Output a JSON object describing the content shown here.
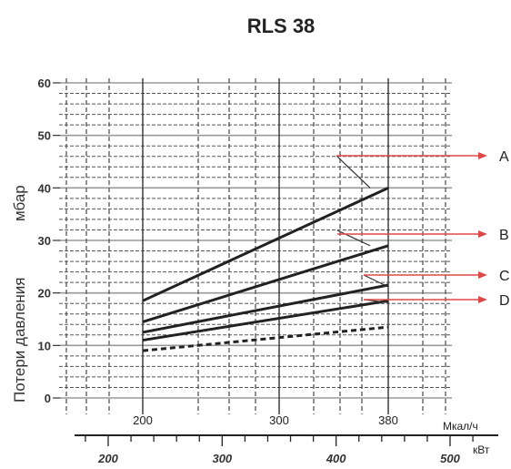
{
  "chart_data": {
    "type": "line",
    "title": "RLS 38",
    "ylabel_line1": "Потери давления",
    "ylabel_line2": "мбар",
    "x_unit_top": "Мкал/ч",
    "x_unit_bottom": "кВт",
    "xlim": [
      200,
      380
    ],
    "ylim": [
      0,
      60
    ],
    "yticks": [
      "0",
      "10",
      "20",
      "30",
      "40",
      "50",
      "60"
    ],
    "xticks_top": [
      "200",
      "300",
      "380"
    ],
    "xticks_bottom": [
      "200",
      "300",
      "400",
      "500"
    ],
    "grid": true,
    "series": [
      {
        "name": "A",
        "x": [
          200,
          380
        ],
        "y": [
          18.5,
          40
        ],
        "style": "solid"
      },
      {
        "name": "B",
        "x": [
          200,
          380
        ],
        "y": [
          14.5,
          29
        ],
        "style": "solid"
      },
      {
        "name": "C",
        "x": [
          200,
          380
        ],
        "y": [
          12.5,
          21.5
        ],
        "style": "solid"
      },
      {
        "name": "D",
        "x": [
          200,
          380
        ],
        "y": [
          11,
          18.5
        ],
        "style": "solid"
      },
      {
        "x": [
          200,
          380
        ],
        "y": [
          9,
          13.5
        ],
        "style": "dashed"
      }
    ],
    "colors": {
      "line": "#222222",
      "grid": "#555555",
      "arrow": "#e04848",
      "text": "#222222"
    }
  }
}
